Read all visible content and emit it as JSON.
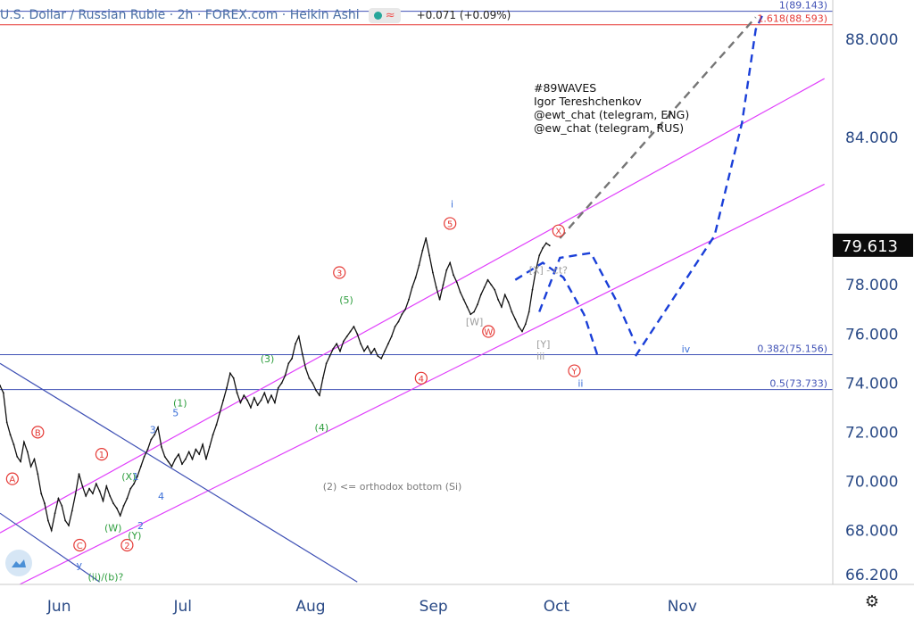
{
  "header": {
    "title": "U.S. Dollar / Russian Ruble · 2h · FOREX.com · Heikin Ashi",
    "change": "+0.071 (+0.09%)",
    "indicator_icon": "wave-icon",
    "status_color": "#26a69a"
  },
  "watermark": {
    "tag": "#89WAVES",
    "author": "Igor Tereshchenkov",
    "contact1": "@ewt_chat (telegram, ENG)",
    "contact2": "@ew_chat (telegram, RUS)"
  },
  "chart_data": {
    "type": "line",
    "title": "U.S. Dollar / Russian Ruble · 2h · FOREX.com · Heikin Ashi",
    "x_ticks": [
      "Jun",
      "Jul",
      "Aug",
      "Sep",
      "Oct",
      "Nov"
    ],
    "y_ticks": [
      "66.200",
      "68.000",
      "70.000",
      "72.000",
      "74.000",
      "76.000",
      "78.000",
      "84.000",
      "88.000"
    ],
    "ylim": [
      65.8,
      89.6
    ],
    "last_price": "79.613",
    "series": [
      {
        "points": [
          [
            0.0,
            73.9
          ],
          [
            0.5,
            73.6
          ],
          [
            1.0,
            72.4
          ],
          [
            1.5,
            71.9
          ],
          [
            2.0,
            71.5
          ],
          [
            2.5,
            71.0
          ],
          [
            3.0,
            70.8
          ],
          [
            3.5,
            71.6
          ],
          [
            4.0,
            71.2
          ],
          [
            4.5,
            70.6
          ],
          [
            5.0,
            70.9
          ],
          [
            5.5,
            70.3
          ],
          [
            6.0,
            69.5
          ],
          [
            6.5,
            69.1
          ],
          [
            7.0,
            68.4
          ],
          [
            7.5,
            68.0
          ],
          [
            8.0,
            68.7
          ],
          [
            8.5,
            69.3
          ],
          [
            9.0,
            69.0
          ],
          [
            9.5,
            68.4
          ],
          [
            10.0,
            68.2
          ],
          [
            10.5,
            68.8
          ],
          [
            11.0,
            69.5
          ],
          [
            11.5,
            70.3
          ],
          [
            12.0,
            69.8
          ],
          [
            12.5,
            69.4
          ],
          [
            13.0,
            69.7
          ],
          [
            13.5,
            69.5
          ],
          [
            14.0,
            69.9
          ],
          [
            14.5,
            69.6
          ],
          [
            15.0,
            69.2
          ],
          [
            15.5,
            69.8
          ],
          [
            16.0,
            69.4
          ],
          [
            16.5,
            69.1
          ],
          [
            17.0,
            68.9
          ],
          [
            17.5,
            68.6
          ],
          [
            18.0,
            69.0
          ],
          [
            18.5,
            69.3
          ],
          [
            19.0,
            69.7
          ],
          [
            19.5,
            69.9
          ],
          [
            20.0,
            70.2
          ],
          [
            20.5,
            70.6
          ],
          [
            21.0,
            71.0
          ],
          [
            21.5,
            71.3
          ],
          [
            22.0,
            71.7
          ],
          [
            22.5,
            71.9
          ],
          [
            23.0,
            72.2
          ],
          [
            23.5,
            71.4
          ],
          [
            24.0,
            71.0
          ],
          [
            24.5,
            70.8
          ],
          [
            25.0,
            70.6
          ],
          [
            25.5,
            70.9
          ],
          [
            26.0,
            71.1
          ],
          [
            26.5,
            70.7
          ],
          [
            27.0,
            70.9
          ],
          [
            27.5,
            71.2
          ],
          [
            28.0,
            70.9
          ],
          [
            28.5,
            71.3
          ],
          [
            29.0,
            71.1
          ],
          [
            29.5,
            71.5
          ],
          [
            30.0,
            70.9
          ],
          [
            30.5,
            71.4
          ],
          [
            31.0,
            71.9
          ],
          [
            31.5,
            72.3
          ],
          [
            32.0,
            72.8
          ],
          [
            32.5,
            73.3
          ],
          [
            33.0,
            73.8
          ],
          [
            33.5,
            74.4
          ],
          [
            34.0,
            74.2
          ],
          [
            34.5,
            73.6
          ],
          [
            35.0,
            73.2
          ],
          [
            35.5,
            73.5
          ],
          [
            36.0,
            73.3
          ],
          [
            36.5,
            73.0
          ],
          [
            37.0,
            73.4
          ],
          [
            37.5,
            73.1
          ],
          [
            38.0,
            73.3
          ],
          [
            38.5,
            73.6
          ],
          [
            39.0,
            73.2
          ],
          [
            39.5,
            73.5
          ],
          [
            40.0,
            73.2
          ],
          [
            40.5,
            73.8
          ],
          [
            41.0,
            74.0
          ],
          [
            41.5,
            74.3
          ],
          [
            42.0,
            74.8
          ],
          [
            42.5,
            75.0
          ],
          [
            43.0,
            75.6
          ],
          [
            43.5,
            75.9
          ],
          [
            44.0,
            75.2
          ],
          [
            44.5,
            74.6
          ],
          [
            45.0,
            74.2
          ],
          [
            45.5,
            74.0
          ],
          [
            46.0,
            73.7
          ],
          [
            46.5,
            73.5
          ],
          [
            47.0,
            74.2
          ],
          [
            47.5,
            74.8
          ],
          [
            48.0,
            75.1
          ],
          [
            48.5,
            75.4
          ],
          [
            49.0,
            75.6
          ],
          [
            49.5,
            75.3
          ],
          [
            50.0,
            75.7
          ],
          [
            50.5,
            75.9
          ],
          [
            51.0,
            76.1
          ],
          [
            51.5,
            76.3
          ],
          [
            52.0,
            76.0
          ],
          [
            52.5,
            75.6
          ],
          [
            53.0,
            75.3
          ],
          [
            53.5,
            75.5
          ],
          [
            54.0,
            75.2
          ],
          [
            54.5,
            75.4
          ],
          [
            55.0,
            75.1
          ],
          [
            55.5,
            75.0
          ],
          [
            56.0,
            75.3
          ],
          [
            56.5,
            75.6
          ],
          [
            57.0,
            75.9
          ],
          [
            57.5,
            76.3
          ],
          [
            58.0,
            76.5
          ],
          [
            58.5,
            76.8
          ],
          [
            59.0,
            77.0
          ],
          [
            59.5,
            77.4
          ],
          [
            60.0,
            77.9
          ],
          [
            60.5,
            78.3
          ],
          [
            61.0,
            78.8
          ],
          [
            61.5,
            79.4
          ],
          [
            62.0,
            79.9
          ],
          [
            62.5,
            79.2
          ],
          [
            63.0,
            78.5
          ],
          [
            63.5,
            77.9
          ],
          [
            64.0,
            77.4
          ],
          [
            64.5,
            78.0
          ],
          [
            65.0,
            78.6
          ],
          [
            65.5,
            78.9
          ],
          [
            66.0,
            78.4
          ],
          [
            66.5,
            78.1
          ],
          [
            67.0,
            77.7
          ],
          [
            67.5,
            77.4
          ],
          [
            68.0,
            77.1
          ],
          [
            68.5,
            76.8
          ],
          [
            69.0,
            76.9
          ],
          [
            69.5,
            77.2
          ],
          [
            70.0,
            77.6
          ],
          [
            70.5,
            77.9
          ],
          [
            71.0,
            78.2
          ],
          [
            71.5,
            78.0
          ],
          [
            72.0,
            77.8
          ],
          [
            72.5,
            77.4
          ],
          [
            73.0,
            77.1
          ],
          [
            73.5,
            77.6
          ],
          [
            74.0,
            77.3
          ],
          [
            74.5,
            76.9
          ],
          [
            75.0,
            76.6
          ],
          [
            75.5,
            76.3
          ],
          [
            76.0,
            76.1
          ],
          [
            76.5,
            76.4
          ],
          [
            77.0,
            76.9
          ],
          [
            77.5,
            77.8
          ],
          [
            78.0,
            78.6
          ],
          [
            78.5,
            79.2
          ],
          [
            79.0,
            79.5
          ],
          [
            79.5,
            79.7
          ],
          [
            80.0,
            79.6
          ]
        ]
      }
    ],
    "x_domain": [
      0,
      100
    ],
    "x_tick_positions": [
      8.6,
      26.6,
      45.2,
      63.1,
      81.0,
      99.3
    ],
    "trend_lines": [
      {
        "color": "#e040fb",
        "points": [
          [
            0.0,
            67.9
          ],
          [
            120.0,
            86.4
          ]
        ]
      },
      {
        "color": "#e040fb",
        "points": [
          [
            0.0,
            65.4
          ],
          [
            120.0,
            82.1
          ]
        ]
      },
      {
        "color": "#3f51b5",
        "points": [
          [
            0.0,
            74.8
          ],
          [
            52.0,
            65.9
          ]
        ]
      },
      {
        "color": "#3f51b5",
        "points": [
          [
            0.0,
            68.7
          ],
          [
            14.5,
            65.9
          ]
        ]
      }
    ],
    "fib_levels": [
      {
        "label": "0.382(75.156)",
        "value": 75.156,
        "color": "#3f51b5"
      },
      {
        "label": "0.5(73.733)",
        "value": 73.733,
        "color": "#3f51b5"
      },
      {
        "label": "1(89.143)",
        "value": 89.143,
        "color": "#3f51b5"
      },
      {
        "label": "1.618(88.593)",
        "value": 88.593,
        "color": "#e53935"
      }
    ],
    "projections": [
      {
        "color": "#1a3fd8",
        "dash": "blue",
        "points": [
          [
            75.0,
            78.2
          ],
          [
            79.0,
            78.9
          ],
          [
            82.0,
            78.3
          ],
          [
            85.0,
            76.8
          ],
          [
            87.0,
            75.1
          ]
        ]
      },
      {
        "color": "#1a3fd8",
        "dash": "blue",
        "points": [
          [
            78.5,
            76.9
          ],
          [
            81.5,
            79.1
          ],
          [
            86.0,
            79.3
          ],
          [
            90.0,
            77.2
          ],
          [
            92.5,
            75.6
          ]
        ]
      },
      {
        "color": "#1a3fd8",
        "dash": "blue",
        "points": [
          [
            92.5,
            75.1
          ],
          [
            104.0,
            80.0
          ],
          [
            108.0,
            84.6
          ],
          [
            110.0,
            88.4
          ],
          [
            111.0,
            89.0
          ]
        ]
      },
      {
        "color": "#757575",
        "dash": "grey",
        "points": [
          [
            81.5,
            79.9
          ],
          [
            110.0,
            88.9
          ]
        ]
      }
    ],
    "wave_labels": [
      {
        "text": "A",
        "x": 1.8,
        "y": 70.1,
        "color": "#e53935",
        "circle": true
      },
      {
        "text": "B",
        "x": 5.5,
        "y": 72.0,
        "color": "#e53935",
        "circle": true
      },
      {
        "text": "C",
        "x": 11.6,
        "y": 67.4,
        "color": "#e53935",
        "circle": true
      },
      {
        "text": "1",
        "x": 14.8,
        "y": 71.1,
        "color": "#e53935",
        "circle": true
      },
      {
        "text": "2",
        "x": 18.5,
        "y": 67.4,
        "color": "#e53935",
        "circle": true
      },
      {
        "text": "3",
        "x": 49.4,
        "y": 78.5,
        "color": "#e53935",
        "circle": true
      },
      {
        "text": "4",
        "x": 61.3,
        "y": 74.2,
        "color": "#e53935",
        "circle": true
      },
      {
        "text": "5",
        "x": 65.5,
        "y": 80.5,
        "color": "#e53935",
        "circle": true
      },
      {
        "text": "W",
        "x": 71.1,
        "y": 76.1,
        "color": "#e53935",
        "circle": true
      },
      {
        "text": "X",
        "x": 81.3,
        "y": 80.2,
        "color": "#e53935",
        "circle": true
      },
      {
        "text": "Y",
        "x": 83.6,
        "y": 74.5,
        "color": "#e53935",
        "circle": true
      },
      {
        "text": "(X)",
        "x": 17.7,
        "y": 70.2,
        "color": "#2e9e3e",
        "circle": false
      },
      {
        "text": "(W)",
        "x": 15.2,
        "y": 68.1,
        "color": "#2e9e3e",
        "circle": false
      },
      {
        "text": "(Y)",
        "x": 18.6,
        "y": 67.8,
        "color": "#2e9e3e",
        "circle": false
      },
      {
        "text": "(1)",
        "x": 25.2,
        "y": 73.2,
        "color": "#2e9e3e",
        "circle": false
      },
      {
        "text": "(2) <= orthodox bottom (Si)",
        "x": 47.0,
        "y": 69.8,
        "color": "#7a7a7a",
        "circle": false
      },
      {
        "text": "(3)",
        "x": 37.9,
        "y": 75.0,
        "color": "#2e9e3e",
        "circle": false
      },
      {
        "text": "(4)",
        "x": 45.8,
        "y": 72.2,
        "color": "#2e9e3e",
        "circle": false
      },
      {
        "text": "(5)",
        "x": 49.4,
        "y": 77.4,
        "color": "#2e9e3e",
        "circle": false
      },
      {
        "text": "1",
        "x": 19.3,
        "y": 70.2,
        "color": "#3b6fd8",
        "circle": false
      },
      {
        "text": "2",
        "x": 20.0,
        "y": 68.2,
        "color": "#3b6fd8",
        "circle": false
      },
      {
        "text": "3",
        "x": 21.8,
        "y": 72.1,
        "color": "#3b6fd8",
        "circle": false
      },
      {
        "text": "4",
        "x": 23.0,
        "y": 69.4,
        "color": "#3b6fd8",
        "circle": false
      },
      {
        "text": "5",
        "x": 25.1,
        "y": 72.8,
        "color": "#3b6fd8",
        "circle": false
      },
      {
        "text": "i",
        "x": 65.6,
        "y": 81.3,
        "color": "#3b6fd8",
        "circle": false
      },
      {
        "text": "ii",
        "x": 84.1,
        "y": 74.0,
        "color": "#3b6fd8",
        "circle": false
      },
      {
        "text": "iv",
        "x": 99.2,
        "y": 75.4,
        "color": "#3b6fd8",
        "circle": false
      },
      {
        "text": "y",
        "x": 11.1,
        "y": 66.6,
        "color": "#3b6fd8",
        "circle": false
      },
      {
        "text": "(ii)/(b)?",
        "x": 12.8,
        "y": 66.1,
        "color": "#2e9e3e",
        "circle": false
      },
      {
        "text": "[X] - ct?",
        "x": 77.0,
        "y": 78.6,
        "color": "#9e9e9e",
        "circle": false
      },
      {
        "text": "[W]",
        "x": 67.8,
        "y": 76.5,
        "color": "#9e9e9e",
        "circle": false
      },
      {
        "text": "[Y]",
        "x": 78.1,
        "y": 75.6,
        "color": "#9e9e9e",
        "circle": false
      },
      {
        "text": "iii",
        "x": 78.1,
        "y": 75.1,
        "color": "#9e9e9e",
        "circle": false
      }
    ],
    "grid": false
  }
}
